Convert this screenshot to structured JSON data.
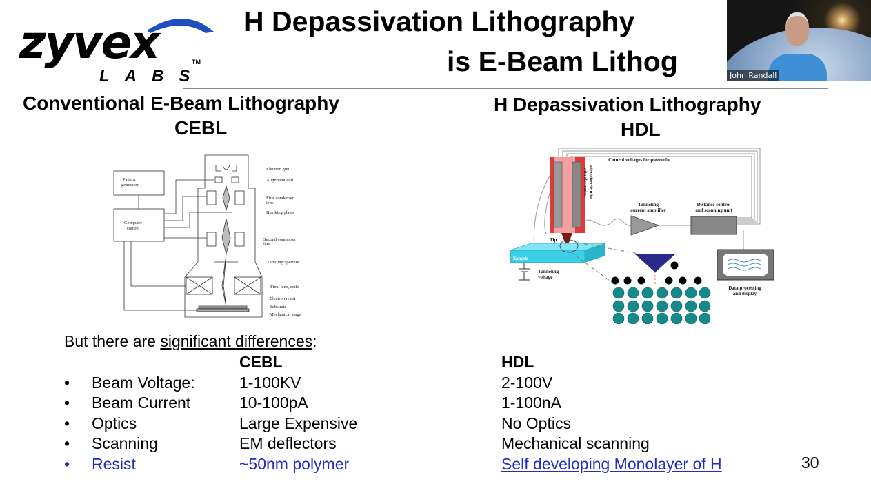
{
  "logo": {
    "brand": "zyvex",
    "sub": "LABS",
    "tm": "TM",
    "arc_color": "#1f4fbf"
  },
  "slide": {
    "title_line1": "H Depassivation Lithography",
    "title_line2": "is E-Beam Lithog",
    "left_heading": "Conventional  E-Beam Lithography",
    "left_abbrev": "CEBL",
    "right_heading": "H Depassivation Lithography",
    "right_abbrev": "HDL",
    "page_number": "30",
    "intro_prefix": "But there are ",
    "intro_link": "significant differences",
    "intro_suffix": ":",
    "col_cebl": "CEBL",
    "col_hdl": "HDL",
    "rows": [
      {
        "label": "Beam Voltage:",
        "cebl": "1-100KV",
        "hdl": "2-100V"
      },
      {
        "label": "Beam Current",
        "cebl": "10-100pA",
        "hdl": "1-100nA"
      },
      {
        "label": "Optics",
        "cebl": "Large Expensive",
        "hdl": "No Optics"
      },
      {
        "label": "Scanning",
        "cebl": "EM deflectors",
        "hdl": "Mechanical scanning"
      },
      {
        "label": "Resist",
        "cebl": "~50nm polymer",
        "hdl": "Self developing Monolayer of H",
        "highlight": true
      }
    ],
    "bullet": "•",
    "highlight_color": "#1f2fbf"
  },
  "cebl_diagram": {
    "pattern_generator": [
      "Pattern",
      "generator"
    ],
    "computer_control": [
      "Computer",
      "control"
    ],
    "labels": [
      "Electron gun",
      "Alignment coil",
      "First condenser",
      "lens",
      "Blanking plates",
      "Second condenser",
      "lens",
      "Limiting aperture",
      "Final lens, coils",
      "Electron resist",
      "Substrate",
      "Mechanical stage"
    ]
  },
  "hdl_diagram": {
    "control_voltages": "Control voltages for piezotube",
    "piezo": [
      "Piezoelectric tube",
      "with electrodes"
    ],
    "amplifier": [
      "Tunneling",
      "current amplifier"
    ],
    "distance": [
      "Distance control",
      "and scanning unit"
    ],
    "tip": "Tip",
    "sample": "Sample",
    "tunneling_voltage": [
      "Tunneling",
      "voltage"
    ],
    "display": [
      "Data processing",
      "and display"
    ]
  },
  "webcam": {
    "participant": "John Randall"
  }
}
